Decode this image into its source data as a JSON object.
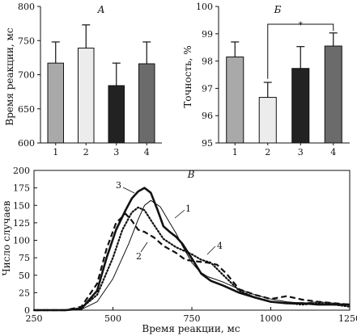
{
  "chart_data": [
    {
      "panel": "А",
      "type": "bar",
      "title": "А",
      "ylabel": "Время реакции, мс",
      "categories": [
        "1",
        "2",
        "3",
        "4"
      ],
      "values": [
        717,
        739,
        684,
        716
      ],
      "errors": [
        31,
        34,
        33,
        32
      ],
      "yticks": [
        600,
        650,
        700,
        750,
        800
      ],
      "ylim": [
        600,
        800
      ],
      "colors": [
        "#a9a9a9",
        "#ececec",
        "#222222",
        "#6b6b6b"
      ]
    },
    {
      "panel": "Б",
      "type": "bar",
      "title": "Б",
      "ylabel": "Точность, %",
      "categories": [
        "1",
        "2",
        "3",
        "4"
      ],
      "values": [
        98.15,
        96.67,
        97.73,
        98.55
      ],
      "errors": [
        0.55,
        0.55,
        0.8,
        0.48
      ],
      "yticks": [
        95,
        96,
        97,
        98,
        99,
        100
      ],
      "ylim": [
        95,
        100
      ],
      "colors": [
        "#a9a9a9",
        "#ececec",
        "#222222",
        "#6b6b6b"
      ],
      "significance": {
        "from": "2",
        "to": "4",
        "label": "*"
      }
    },
    {
      "panel": "В",
      "type": "line",
      "title": "В",
      "xlabel": "Время реакции, мс",
      "ylabel": "Число случаев",
      "xticks": [
        250,
        500,
        750,
        1000,
        1250
      ],
      "yticks": [
        0,
        25,
        50,
        75,
        100,
        125,
        150,
        175,
        200
      ],
      "xlim": [
        250,
        1250
      ],
      "ylim": [
        0,
        200
      ],
      "series": [
        {
          "name": "1",
          "style": "thin",
          "x": [
            250,
            350,
            400,
            450,
            500,
            550,
            580,
            600,
            620,
            650,
            680,
            700,
            720,
            750,
            775,
            800,
            825,
            850,
            875,
            900,
            950,
            1000,
            1050,
            1100,
            1150,
            1200,
            1250
          ],
          "y": [
            0,
            0,
            1,
            12,
            45,
            95,
            130,
            150,
            157,
            148,
            125,
            110,
            92,
            68,
            55,
            48,
            44,
            40,
            35,
            30,
            22,
            16,
            12,
            10,
            12,
            10,
            8
          ]
        },
        {
          "name": "2",
          "style": "dotted",
          "x": [
            250,
            350,
            400,
            450,
            500,
            530,
            560,
            580,
            600,
            630,
            660,
            700,
            720,
            750,
            780,
            810,
            850,
            900,
            950,
            1000,
            1050,
            1100,
            1150,
            1200,
            1250
          ],
          "y": [
            0,
            0,
            3,
            22,
            75,
            115,
            140,
            147,
            143,
            122,
            102,
            90,
            86,
            80,
            72,
            68,
            50,
            28,
            18,
            12,
            10,
            8,
            10,
            8,
            5
          ]
        },
        {
          "name": "3",
          "style": "thick",
          "x": [
            250,
            350,
            400,
            450,
            480,
            510,
            540,
            560,
            580,
            600,
            620,
            640,
            660,
            680,
            700,
            720,
            750,
            780,
            810,
            850,
            900,
            950,
            1000,
            1050,
            1100,
            1150,
            1200,
            1250
          ],
          "y": [
            0,
            0,
            2,
            28,
            75,
            115,
            143,
            160,
            170,
            175,
            168,
            145,
            120,
            112,
            105,
            95,
            74,
            52,
            42,
            35,
            25,
            18,
            12,
            10,
            10,
            8,
            8,
            8
          ]
        },
        {
          "name": "4",
          "style": "dashed",
          "x": [
            250,
            350,
            400,
            450,
            480,
            510,
            540,
            560,
            580,
            600,
            630,
            660,
            700,
            730,
            760,
            800,
            830,
            860,
            900,
            950,
            1000,
            1050,
            1100,
            1150,
            1200,
            1250
          ],
          "y": [
            0,
            0,
            5,
            38,
            88,
            125,
            138,
            128,
            115,
            112,
            104,
            92,
            82,
            72,
            70,
            68,
            65,
            52,
            30,
            22,
            16,
            20,
            15,
            12,
            10,
            8
          ]
        }
      ]
    }
  ]
}
